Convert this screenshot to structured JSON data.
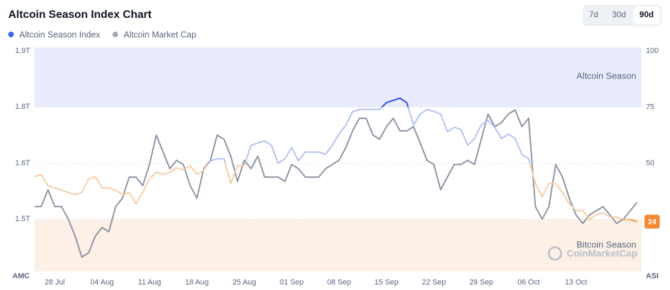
{
  "chart_data": {
    "type": "line",
    "title": "Altcoin Season Index Chart",
    "range_buttons": [
      "7d",
      "30d",
      "90d"
    ],
    "y_axis_label": "AMC",
    "y2_axis_label": "ASI",
    "watermark": "CoinMarketCap",
    "bands": [
      {
        "label": "Altcoin Season",
        "from": 75,
        "to": 100,
        "color": "#e8ecfe"
      },
      {
        "label": "Bitcoin Season",
        "from": 0,
        "to": 25,
        "color": "#fdf0e6"
      }
    ],
    "categories": [
      null,
      null,
      null,
      "28 Jul",
      null,
      null,
      null,
      null,
      null,
      null,
      "04 Aug",
      null,
      null,
      null,
      null,
      null,
      null,
      "11 Aug",
      null,
      null,
      null,
      null,
      null,
      null,
      "18 Aug",
      null,
      null,
      null,
      null,
      null,
      null,
      "25 Aug",
      null,
      null,
      null,
      null,
      null,
      null,
      "01 Sep",
      null,
      null,
      null,
      null,
      null,
      null,
      "08 Sep",
      null,
      null,
      null,
      null,
      null,
      null,
      "15 Sep",
      null,
      null,
      null,
      null,
      null,
      null,
      "22 Sep",
      null,
      null,
      null,
      null,
      null,
      null,
      "29 Sep",
      null,
      null,
      null,
      null,
      null,
      null,
      "06 Oct",
      null,
      null,
      null,
      null,
      null,
      null,
      "13 Oct",
      null,
      null,
      null,
      null,
      null,
      null,
      null,
      null,
      null
    ],
    "series": [
      {
        "name": "Altcoin Season Index",
        "color": "#3861fb",
        "axis": "y2",
        "color_stops": [
          {
            "above": 75,
            "color": "#3350e6"
          },
          {
            "above": 50,
            "color": "#b3c0f7"
          },
          {
            "above": 25,
            "color": "#f9cda5"
          },
          {
            "above": 0,
            "color": "#f5892f"
          }
        ],
        "values": [
          44,
          45,
          40,
          39,
          38,
          37,
          36,
          37,
          43,
          44,
          39,
          39,
          38,
          36,
          37,
          32,
          37,
          43,
          46,
          45,
          46,
          48,
          47,
          49,
          45,
          47,
          51,
          52,
          52,
          41,
          49,
          49,
          58,
          59,
          60,
          58,
          50,
          52,
          57,
          51,
          55,
          55,
          55,
          54,
          58,
          63,
          67,
          73,
          74,
          74,
          74,
          74,
          77,
          78,
          79,
          77,
          67,
          72,
          74,
          73,
          72,
          64,
          66,
          65,
          58,
          61,
          67,
          69,
          66,
          61,
          63,
          61,
          54,
          52,
          41,
          35,
          41,
          41,
          37,
          32,
          29,
          29,
          25,
          27,
          28,
          26,
          26,
          25,
          25,
          24
        ]
      },
      {
        "name": "Altcoin Market Cap",
        "color": "#a1a7bb",
        "line_color": "#8c93a3",
        "values": [
          1.53,
          1.53,
          1.57,
          1.53,
          1.53,
          1.5,
          1.46,
          1.41,
          1.42,
          1.46,
          1.48,
          1.47,
          1.53,
          1.55,
          1.6,
          1.6,
          1.58,
          1.63,
          1.7,
          1.66,
          1.62,
          1.64,
          1.63,
          1.58,
          1.55,
          1.62,
          1.64,
          1.7,
          1.69,
          1.65,
          1.59,
          1.64,
          1.62,
          1.65,
          1.6,
          1.6,
          1.6,
          1.59,
          1.63,
          1.62,
          1.6,
          1.6,
          1.6,
          1.62,
          1.63,
          1.64,
          1.67,
          1.71,
          1.74,
          1.74,
          1.7,
          1.69,
          1.72,
          1.74,
          1.71,
          1.71,
          1.72,
          1.68,
          1.64,
          1.63,
          1.57,
          1.6,
          1.63,
          1.63,
          1.64,
          1.63,
          1.69,
          1.75,
          1.72,
          1.73,
          1.75,
          1.76,
          1.72,
          1.74,
          1.53,
          1.5,
          1.53,
          1.63,
          1.6,
          1.55,
          1.51,
          1.49,
          1.51,
          1.52,
          1.53,
          1.51,
          1.49,
          1.5,
          1.52,
          1.54
        ]
      }
    ],
    "ylim": [
      1.366,
      1.9
    ],
    "yticks": [
      {
        "value": 1.9,
        "label": "1.9T"
      },
      {
        "value": 1.767,
        "label": "1.8T"
      },
      {
        "value": 1.633,
        "label": "1.6T"
      },
      {
        "value": 1.5,
        "label": "1.5T"
      }
    ],
    "y2lim": [
      0,
      100
    ],
    "y2ticks": [
      100,
      75,
      50,
      25
    ],
    "grid": true
  }
}
